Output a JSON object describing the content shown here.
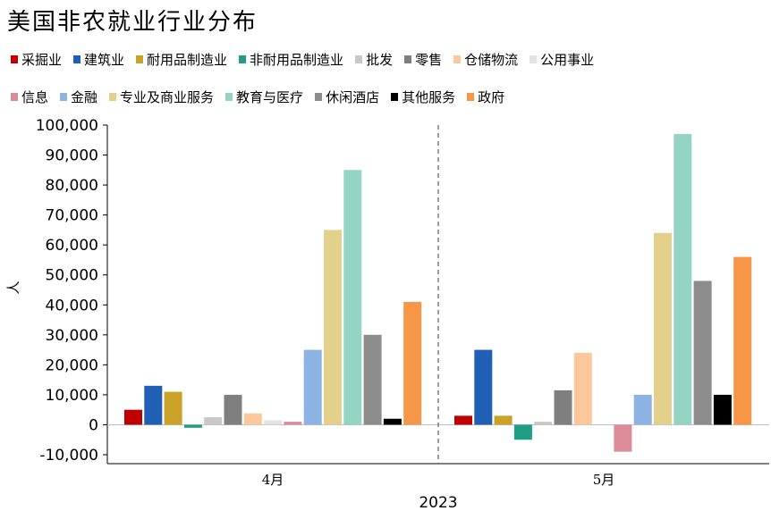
{
  "chart_data": {
    "type": "bar",
    "title": "美国非农就业行业分布",
    "ylabel": "人",
    "xlabel": "2023",
    "categories": [
      "4月",
      "5月"
    ],
    "ylim": [
      -10000,
      100000
    ],
    "yticks": [
      -10000,
      0,
      10000,
      20000,
      30000,
      40000,
      50000,
      60000,
      70000,
      80000,
      90000,
      100000
    ],
    "ytick_labels": [
      "-10,000",
      "0",
      "10,000",
      "20,000",
      "30,000",
      "40,000",
      "50,000",
      "60,000",
      "70,000",
      "80,000",
      "90,000",
      "100,000"
    ],
    "grid": false,
    "legend_position": "top",
    "series": [
      {
        "name": "采掘业",
        "color": "#c00000",
        "values": [
          5000,
          3000
        ]
      },
      {
        "name": "建筑业",
        "color": "#1f5fb4",
        "values": [
          13000,
          25000
        ]
      },
      {
        "name": "耐用品制造业",
        "color": "#c9a227",
        "values": [
          11000,
          3000
        ]
      },
      {
        "name": "非耐用品制造业",
        "color": "#1f9e85",
        "values": [
          -1000,
          -5000
        ]
      },
      {
        "name": "批发",
        "color": "#c8c8c8",
        "values": [
          2500,
          1000
        ]
      },
      {
        "name": "零售",
        "color": "#7f7f7f",
        "values": [
          10000,
          11500
        ]
      },
      {
        "name": "仓储物流",
        "color": "#fcc89b",
        "values": [
          3800,
          24000
        ]
      },
      {
        "name": "公用事业",
        "color": "#e3e3e3",
        "values": [
          1500,
          0
        ]
      },
      {
        "name": "信息",
        "color": "#dc8c99",
        "values": [
          1000,
          -9000
        ]
      },
      {
        "name": "金融",
        "color": "#8db3e2",
        "values": [
          25000,
          10000
        ]
      },
      {
        "name": "专业及商业服务",
        "color": "#e2d08b",
        "values": [
          65000,
          64000
        ]
      },
      {
        "name": "教育与医疗",
        "color": "#93d4c4",
        "values": [
          85000,
          97000
        ]
      },
      {
        "name": "休闲酒店",
        "color": "#8c8c8c",
        "values": [
          30000,
          48000
        ]
      },
      {
        "name": "其他服务",
        "color": "#000000",
        "values": [
          2000,
          10000
        ]
      },
      {
        "name": "政府",
        "color": "#f79646",
        "values": [
          41000,
          56000
        ]
      }
    ]
  }
}
